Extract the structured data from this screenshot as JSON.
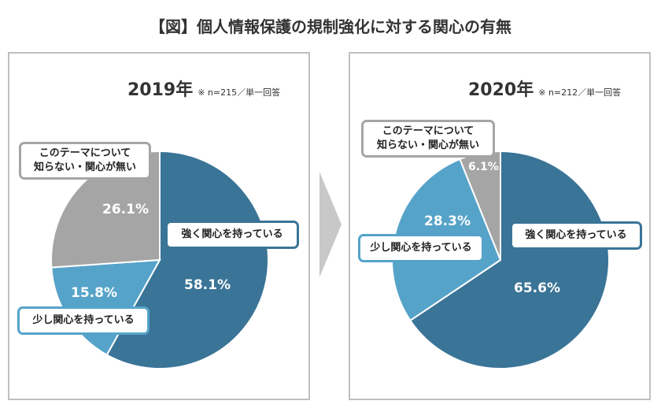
{
  "title": "【図】個人情報保護の規制強化に対する関心の有無",
  "colors": {
    "strong": "#3a7497",
    "some": "#56a3c9",
    "none": "#a5a5a5"
  },
  "chart_data": [
    {
      "type": "pie",
      "title": "2019年",
      "note": "※ n=215／単一回答",
      "categories": [
        "強く関心を持っている",
        "少し関心を持っている",
        "このテーマについて知らない・関心が無い"
      ],
      "values": [
        58.1,
        15.8,
        26.1
      ],
      "labels": [
        "58.1%",
        "15.8%",
        "26.1%"
      ],
      "start": "top",
      "direction": "clockwise"
    },
    {
      "type": "pie",
      "title": "2020年",
      "note": "※ n=212／単一回答",
      "categories": [
        "強く関心を持っている",
        "少し関心を持っている",
        "このテーマについて知らない・関心が無い"
      ],
      "values": [
        65.6,
        28.3,
        6.1
      ],
      "labels": [
        "65.6%",
        "28.3%",
        "6.1%"
      ],
      "start": "top",
      "direction": "clockwise"
    }
  ],
  "legend_line1": "このテーマについて",
  "legend_line2": "知らない・関心が無い"
}
